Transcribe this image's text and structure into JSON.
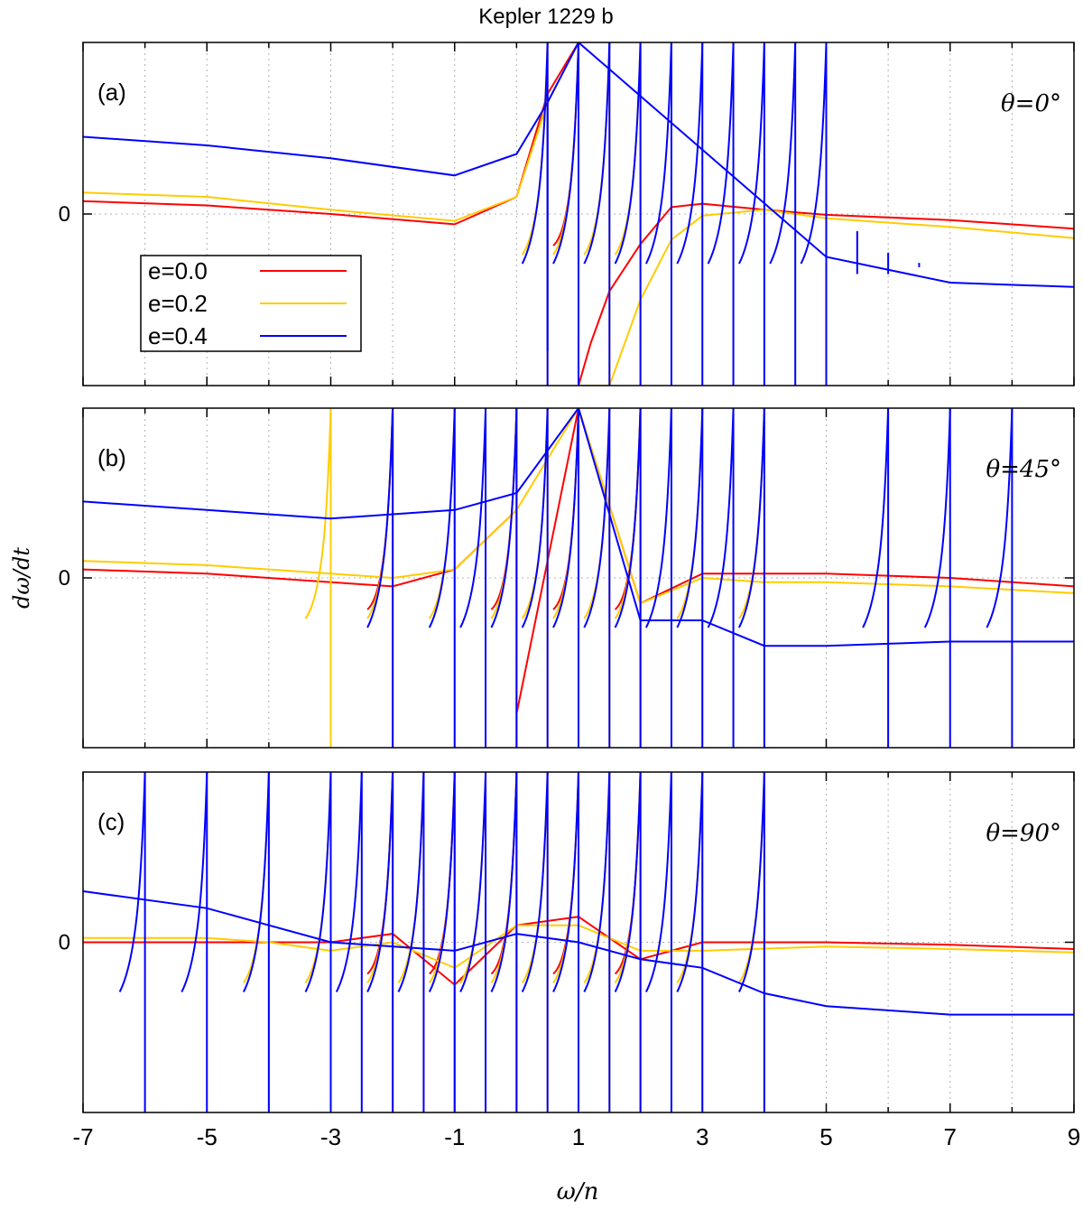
{
  "title": "Kepler 1229 b",
  "xlabel": "ω/n",
  "ylabel": "dω/dt",
  "colors": {
    "e0": "#ff0000",
    "e2": "#ffcc00",
    "e4": "#0000ff",
    "frame": "#000000",
    "grid": "#b0b0b0"
  },
  "chart_data": [
    {
      "type": "line",
      "panel_label": "(a)",
      "theta_label": "θ=0°",
      "xlim": [
        -7,
        9
      ],
      "y_ticks": [
        "0"
      ],
      "x_ticks": [
        "-7",
        "-5",
        "-3",
        "-1",
        "1",
        "3",
        "5",
        "7",
        "9"
      ],
      "grid": true,
      "legend": {
        "placement": "left",
        "entries": [
          "e=0.0",
          "e=0.2",
          "e=0.4"
        ]
      },
      "series": [
        {
          "name": "e=0.0",
          "color": "#ff0000",
          "poles": [
            1
          ],
          "curve": [
            [
              -7,
              0.15
            ],
            [
              -5,
              0.1
            ],
            [
              -3,
              0.0
            ],
            [
              -1,
              -0.12
            ],
            [
              0,
              0.2
            ],
            [
              0.5,
              1.4
            ],
            [
              1,
              5
            ],
            [
              1,
              -5
            ],
            [
              1.2,
              -1.5
            ],
            [
              1.5,
              -0.9
            ],
            [
              2,
              -0.35
            ],
            [
              2.5,
              0.08
            ],
            [
              3,
              0.12
            ],
            [
              4,
              0.05
            ],
            [
              5,
              -0.01
            ],
            [
              7,
              -0.07
            ],
            [
              9,
              -0.17
            ]
          ]
        },
        {
          "name": "e=0.2",
          "color": "#ffcc00",
          "poles": [
            0.5,
            1,
            1.5,
            2
          ],
          "curve": [
            [
              -7,
              0.25
            ],
            [
              -5,
              0.2
            ],
            [
              -3,
              0.05
            ],
            [
              -1,
              -0.08
            ],
            [
              0,
              0.2
            ],
            [
              0.5,
              1.3
            ],
            [
              1,
              5
            ],
            [
              1,
              -5
            ],
            [
              1.5,
              -4
            ],
            [
              2,
              -1
            ],
            [
              2.5,
              -0.3
            ],
            [
              3,
              -0.02
            ],
            [
              4,
              0.05
            ],
            [
              5,
              -0.05
            ],
            [
              7,
              -0.15
            ],
            [
              9,
              -0.28
            ]
          ]
        },
        {
          "name": "e=0.4",
          "color": "#0000ff",
          "poles": [
            0.5,
            1,
            1.5,
            2,
            2.5,
            3,
            3.5,
            4,
            4.5,
            5
          ],
          "spikes": [
            [
              0.5,
              -1.6,
              1.4
            ],
            [
              5.5,
              -0.7,
              -0.2
            ],
            [
              6,
              -0.7,
              -0.45
            ],
            [
              6.5,
              -0.62,
              -0.57
            ]
          ],
          "curve": [
            [
              -7,
              0.9
            ],
            [
              -5,
              0.8
            ],
            [
              -3,
              0.65
            ],
            [
              -1,
              0.45
            ],
            [
              0,
              0.7
            ],
            [
              0.5,
              1.3
            ],
            [
              1,
              5
            ],
            [
              5,
              -0.5
            ],
            [
              7,
              -0.8
            ],
            [
              9,
              -0.85
            ]
          ]
        }
      ]
    },
    {
      "type": "line",
      "panel_label": "(b)",
      "theta_label": "θ=45°",
      "xlim": [
        -7,
        9
      ],
      "y_ticks": [
        "0"
      ],
      "x_ticks": [
        "-7",
        "-5",
        "-3",
        "-1",
        "1",
        "3",
        "5",
        "7",
        "9"
      ],
      "grid": true,
      "series": [
        {
          "name": "e=0.0",
          "color": "#ff0000",
          "poles": [
            -2,
            0,
            1,
            2
          ],
          "curve": [
            [
              -7,
              0.1
            ],
            [
              -5,
              0.05
            ],
            [
              -3,
              -0.05
            ],
            [
              -2,
              -0.1
            ],
            [
              -1,
              0.1
            ],
            [
              0,
              0.8
            ],
            [
              0,
              -1.6
            ],
            [
              1,
              2.5
            ],
            [
              2,
              -0.3
            ],
            [
              3,
              0.05
            ],
            [
              4,
              0.05
            ],
            [
              5,
              0.05
            ],
            [
              7,
              0.0
            ],
            [
              9,
              -0.1
            ]
          ]
        },
        {
          "name": "e=0.2",
          "color": "#ffcc00",
          "poles": [
            -3,
            -2,
            -1,
            0,
            0.5,
            1,
            1.5,
            2,
            3,
            4
          ],
          "curve": [
            [
              -7,
              0.2
            ],
            [
              -5,
              0.15
            ],
            [
              -3,
              0.05
            ],
            [
              -2,
              0.0
            ],
            [
              -1,
              0.1
            ],
            [
              0,
              0.8
            ],
            [
              1,
              2.5
            ],
            [
              2,
              -0.3
            ],
            [
              3,
              0.0
            ],
            [
              4,
              -0.05
            ],
            [
              5,
              -0.05
            ],
            [
              7,
              -0.1
            ],
            [
              9,
              -0.18
            ]
          ]
        },
        {
          "name": "e=0.4",
          "color": "#0000ff",
          "poles": [
            -2,
            -1,
            -0.5,
            0,
            0.5,
            1,
            1.5,
            2,
            2.5,
            3,
            3.5,
            4,
            6,
            7,
            8
          ],
          "curve": [
            [
              -7,
              0.9
            ],
            [
              -5,
              0.8
            ],
            [
              -3,
              0.7
            ],
            [
              -1,
              0.8
            ],
            [
              0,
              1.0
            ],
            [
              1,
              2.5
            ],
            [
              2,
              -0.5
            ],
            [
              3,
              -0.5
            ],
            [
              4,
              -0.8
            ],
            [
              5,
              -0.8
            ],
            [
              7,
              -0.75
            ],
            [
              9,
              -0.75
            ]
          ]
        }
      ]
    },
    {
      "type": "line",
      "panel_label": "(c)",
      "theta_label": "θ=90°",
      "xlim": [
        -7,
        9
      ],
      "y_ticks": [
        "0"
      ],
      "x_ticks": [
        "-7",
        "-5",
        "-3",
        "-1",
        "1",
        "3",
        "5",
        "7",
        "9"
      ],
      "grid": true,
      "series": [
        {
          "name": "e=0.0",
          "color": "#ff0000",
          "poles": [
            -2,
            -1,
            0,
            1,
            2
          ],
          "curve": [
            [
              -7,
              0.0
            ],
            [
              -5,
              0.0
            ],
            [
              -3,
              0.0
            ],
            [
              -2,
              0.1
            ],
            [
              -1,
              -0.5
            ],
            [
              0,
              0.2
            ],
            [
              1,
              0.3
            ],
            [
              2,
              -0.2
            ],
            [
              3,
              0.0
            ],
            [
              5,
              0.0
            ],
            [
              7,
              -0.03
            ],
            [
              9,
              -0.08
            ]
          ]
        },
        {
          "name": "e=0.2",
          "color": "#ffcc00",
          "poles": [
            -4,
            -3,
            -2,
            -1.5,
            -1,
            -0.5,
            0,
            0.5,
            1,
            1.5,
            2,
            3,
            4
          ],
          "curve": [
            [
              -7,
              0.05
            ],
            [
              -5,
              0.05
            ],
            [
              -4,
              0.0
            ],
            [
              -3,
              -0.1
            ],
            [
              -2,
              0.0
            ],
            [
              -1,
              -0.3
            ],
            [
              0,
              0.2
            ],
            [
              1,
              0.2
            ],
            [
              2,
              -0.1
            ],
            [
              3,
              -0.1
            ],
            [
              5,
              -0.05
            ],
            [
              7,
              -0.08
            ],
            [
              9,
              -0.12
            ]
          ]
        },
        {
          "name": "e=0.4",
          "color": "#0000ff",
          "poles": [
            -6,
            -5,
            -4,
            -3,
            -2.5,
            -2,
            -1.5,
            -1,
            -0.5,
            0,
            0.5,
            1,
            1.5,
            2,
            2.5,
            3,
            4
          ],
          "curve": [
            [
              -7,
              0.6
            ],
            [
              -5,
              0.4
            ],
            [
              -3,
              0.0
            ],
            [
              -1,
              -0.1
            ],
            [
              0,
              0.1
            ],
            [
              1,
              0.0
            ],
            [
              2,
              -0.2
            ],
            [
              3,
              -0.3
            ],
            [
              4,
              -0.6
            ],
            [
              5,
              -0.75
            ],
            [
              7,
              -0.85
            ],
            [
              9,
              -0.85
            ]
          ]
        }
      ]
    }
  ]
}
